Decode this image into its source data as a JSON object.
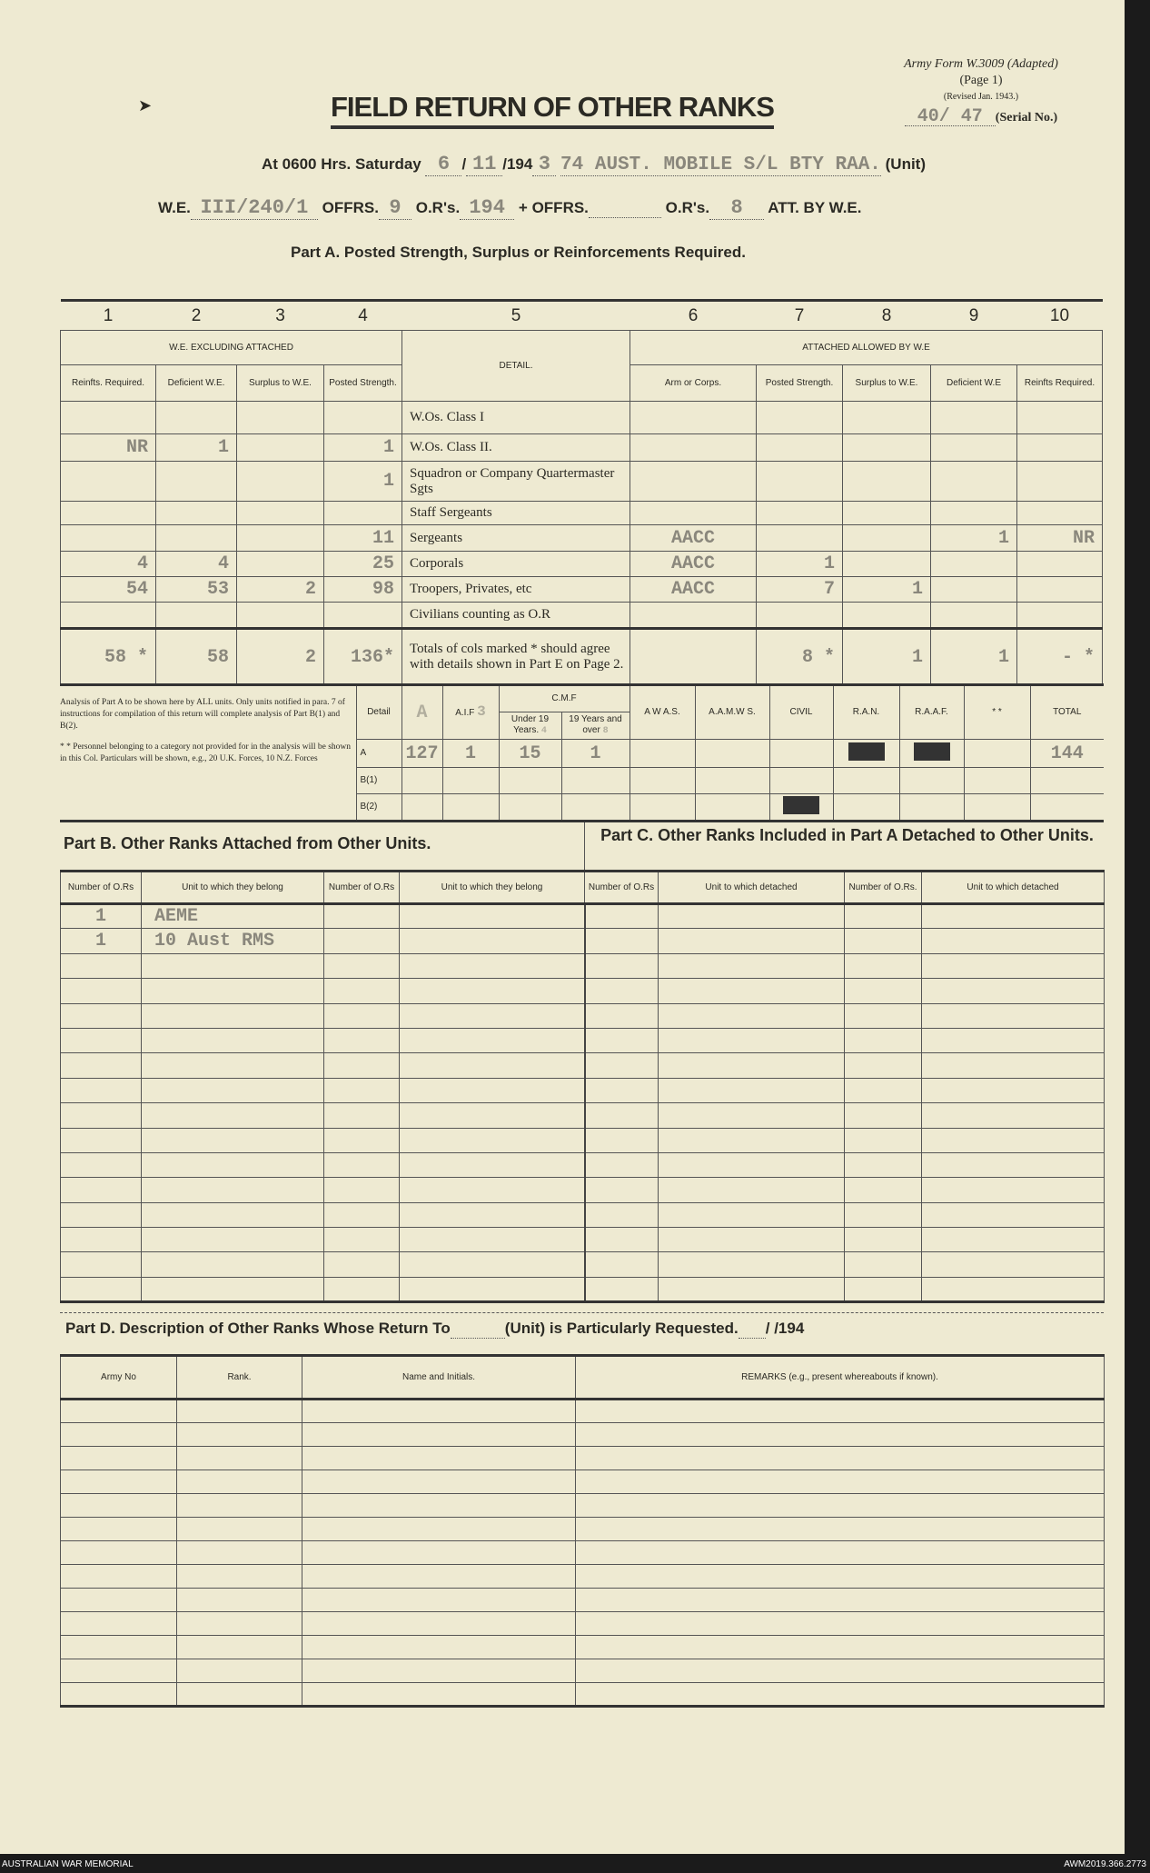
{
  "header": {
    "form_ref": "Army Form W.3009 (Adapted)",
    "page": "(Page 1)",
    "revised": "(Revised Jan. 1943.)",
    "serial_value": "40/ 47",
    "serial_label": "(Serial No.)",
    "title": "FIELD RETURN OF OTHER RANKS"
  },
  "line1": {
    "at": "At 0600 Hrs. Saturday",
    "date_day": "6",
    "date_month": "11",
    "year_prefix": "/194",
    "year_suffix": "3",
    "unit_value": "74 AUST. MOBILE S/L BTY RAA.",
    "unit_label": "(Unit)"
  },
  "line2": {
    "we_label": "W.E.",
    "we_value": "III/240/1",
    "offrs_label": "OFFRS.",
    "offrs_value": "9",
    "ors_label": "O.R's.",
    "ors_value": "194",
    "plus": "+",
    "offrs2_label": "OFFRS.",
    "ors2_label": "O.R's.",
    "ors2_value": "8",
    "att": "ATT. BY W.E."
  },
  "part_a": {
    "title": "Part A.  Posted Strength, Surplus or Reinforcements Required.",
    "col_numbers": [
      "1",
      "2",
      "3",
      "4",
      "5",
      "6",
      "7",
      "8",
      "9",
      "10"
    ],
    "group_left": "W.E. EXCLUDING ATTACHED",
    "group_right": "ATTACHED ALLOWED BY W.E",
    "detail_header": "DETAIL.",
    "col_headers": [
      "Reinfts. Required.",
      "Deficient W.E.",
      "Surplus to W.E.",
      "Posted Strength.",
      "Arm or Corps.",
      "Posted Strength.",
      "Surplus to W.E.",
      "Deficient W.E",
      "Reinfts Required."
    ],
    "rows": [
      {
        "c1": "",
        "c2": "",
        "c3": "",
        "c4": "",
        "detail": "W.Os. Class I",
        "c6": "",
        "c7": "",
        "c8": "",
        "c9": "",
        "c10": ""
      },
      {
        "c1": "NR",
        "c2": "1",
        "c3": "",
        "c4": "1",
        "detail": "W.Os. Class II.",
        "c6": "",
        "c7": "",
        "c8": "",
        "c9": "",
        "c10": ""
      },
      {
        "c1": "",
        "c2": "",
        "c3": "",
        "c4": "1",
        "detail": "Squadron or Company Quartermaster Sgts",
        "c6": "",
        "c7": "",
        "c8": "",
        "c9": "",
        "c10": ""
      },
      {
        "c1": "",
        "c2": "",
        "c3": "",
        "c4": "",
        "detail": "Staff Sergeants",
        "c6": "",
        "c7": "",
        "c8": "",
        "c9": "",
        "c10": ""
      },
      {
        "c1": "",
        "c2": "",
        "c3": "",
        "c4": "11",
        "detail": "Sergeants",
        "c6": "AACC",
        "c7": "",
        "c8": "",
        "c9": "1",
        "c10": "NR"
      },
      {
        "c1": "4",
        "c2": "4",
        "c3": "",
        "c4": "25",
        "detail": "Corporals",
        "c6": "AACC",
        "c7": "1",
        "c8": "",
        "c9": "",
        "c10": ""
      },
      {
        "c1": "54",
        "c2": "53",
        "c3": "2",
        "c4": "98",
        "detail": "Troopers, Privates, etc",
        "c6": "AACC",
        "c7": "7",
        "c8": "1",
        "c9": "",
        "c10": ""
      },
      {
        "c1": "",
        "c2": "",
        "c3": "",
        "c4": "",
        "detail": "Civilians counting as O.R",
        "c6": "",
        "c7": "",
        "c8": "",
        "c9": "",
        "c10": ""
      },
      {
        "c1": "58 *",
        "c2": "58",
        "c3": "2",
        "c4": "136*",
        "detail": "Totals of cols marked * should agree with details shown in Part E on Page 2.",
        "c6": "",
        "c7": "8 *",
        "c8": "1",
        "c9": "1",
        "c10": "- *"
      }
    ]
  },
  "analysis": {
    "note1": "Analysis of Part A to be shown here by ALL units. Only units notified in para. 7 of instructions for compilation of this return will complete analysis of Part B(1) and B(2).",
    "note2": "* * Personnel belonging to a category not provided for in the analysis will be shown in this Col. Particulars will be shown, e.g., 20 U.K. Forces, 10 N.Z. Forces",
    "headers": {
      "detail": "Detail",
      "aif": "A.I.F",
      "cmf": "C.M.F",
      "under19": "Under 19 Years.",
      "over19": "19 Years and over",
      "awas": "A W A.S.",
      "aamws": "A.A.M.W S.",
      "civil": "CIVIL",
      "ran": "R.A.N.",
      "raaf": "R.A.A.F.",
      "other": "* *",
      "total": "TOTAL"
    },
    "header_stamps": {
      "a": "A",
      "aif": "3",
      "under19": "4",
      "over19": "8"
    },
    "rows": [
      {
        "label": "A",
        "a": "127",
        "aif": "1",
        "under19": "15",
        "over19": "1",
        "total": "144"
      },
      {
        "label": "B(1)"
      },
      {
        "label": "B(2)"
      }
    ]
  },
  "part_b": {
    "title": "Part B.  Other Ranks Attached from Other Units.",
    "headers": [
      "Number of O.Rs",
      "Unit to which they belong",
      "Number of O.Rs",
      "Unit to which they belong"
    ],
    "rows": [
      {
        "n": "1",
        "unit": "AEME"
      },
      {
        "n": "1",
        "unit": "10 Aust RMS"
      }
    ]
  },
  "part_c": {
    "title": "Part C.  Other Ranks Included in Part A Detached to Other Units.",
    "headers": [
      "Number of O.Rs",
      "Unit to which detached",
      "Number of O.Rs.",
      "Unit to which detached"
    ]
  },
  "part_d": {
    "title": "Part D.  Description of Other Ranks Whose Return To",
    "unit": "(Unit) is Particularly Requested.",
    "date": "/ /194",
    "headers": [
      "Army No",
      "Rank.",
      "Name and Initials.",
      "REMARKS (e.g., present whereabouts if known)."
    ]
  },
  "footer": {
    "left": "AUSTRALIAN WAR MEMORIAL",
    "right": "AWM2019.366.2773"
  },
  "colors": {
    "paper": "#eeead2",
    "ink": "#2b2a24",
    "typed": "#8a877c",
    "background": "#1b1b1b"
  }
}
